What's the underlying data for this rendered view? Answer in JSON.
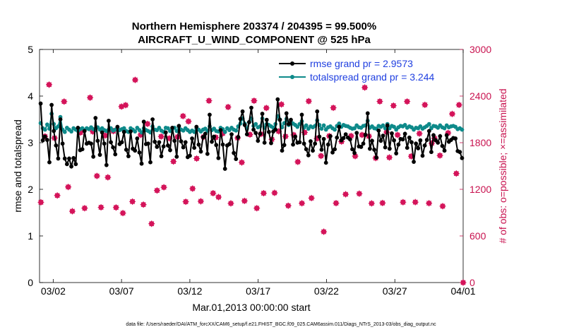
{
  "chart_data": {
    "type": "line",
    "title_line1": "Northern Hemisphere 203374 / 204395 = 99.500%",
    "title_line2": "AIRCRAFT_U_WIND_COMPONENT @ 525 hPa",
    "xlabel": "Mar.01,2013 00:00:00 start",
    "ylabel_left": "rmse and totalspread",
    "ylabel_right": "# of obs: o=possible; ×=assimilated",
    "footnote": "data file: /Users/raeder/DAI/ATM_forcXX/CAM6_setup/f.e21.FHIST_BGC.f09_025.CAM6assim.011/Diags_NTrS_2013-03/obs_diag_output.nc",
    "xlim": [
      0,
      31
    ],
    "ylim_left": [
      0,
      5
    ],
    "ylim_right": [
      0,
      3000
    ],
    "x_ticks": [
      {
        "value": 1,
        "label": "03/02"
      },
      {
        "value": 6,
        "label": "03/07"
      },
      {
        "value": 11,
        "label": "03/12"
      },
      {
        "value": 16,
        "label": "03/17"
      },
      {
        "value": 21,
        "label": "03/22"
      },
      {
        "value": 26,
        "label": "03/27"
      },
      {
        "value": 31,
        "label": "04/01"
      }
    ],
    "y_ticks_left": [
      "0",
      "1",
      "2",
      "3",
      "4",
      "5"
    ],
    "y_ticks_right": [
      "0",
      "600",
      "1200",
      "1800",
      "2400",
      "3000"
    ],
    "series": [
      {
        "name": "rmse",
        "legend": "rmse grand pr = 2.9573",
        "color": "#000000",
        "values": [
          3.84,
          3.05,
          3.13,
          3.06,
          2.58,
          3.81,
          3.25,
          2.94,
          2.66,
          3.5,
          2.98,
          2.66,
          2.54,
          2.66,
          2.49,
          2.67,
          2.54,
          3.32,
          2.84,
          2.86,
          3.25,
          2.98,
          3.0,
          2.98,
          2.7,
          3.53,
          3.04,
          2.74,
          3.22,
          2.98,
          2.52,
          3.47,
          3.01,
          2.9,
          2.75,
          3.34,
          2.97,
          3.01,
          3.23,
          2.85,
          2.71,
          3.24,
          2.87,
          2.83,
          3.09,
          2.79,
          2.55,
          3.45,
          2.97,
          2.98,
          2.58,
          3.5,
          3.02,
          2.91,
          3.01,
          2.71,
          2.92,
          3.22,
          2.94,
          2.84,
          3.32,
          3.04,
          2.7,
          3.36,
          3.03,
          2.9,
          3.01,
          2.69,
          2.72,
          3.09,
          2.89,
          3.34,
          2.96,
          2.81,
          3.12,
          3.19,
          2.76,
          3.6,
          3.02,
          3.13,
          2.95,
          2.67,
          3.27,
          2.96,
          2.44,
          2.94,
          2.97,
          3.18,
          2.78,
          2.65,
          3.12,
          3.51,
          3.67,
          3.38,
          3.18,
          3.44,
          3.75,
          3.28,
          3.21,
          3.04,
          3.19,
          3.62,
          3.0,
          3.49,
          3.23,
          2.99,
          3.24,
          3.28,
          3.93,
          3.49,
          2.83,
          2.95,
          3.63,
          3.4,
          3.49,
          2.96,
          3.13,
          3.0,
          3.01,
          3.6,
          2.98,
          2.86,
          2.73,
          3.03,
          2.83,
          2.98,
          3.67,
          3.13,
          2.85,
          3.08,
          2.57,
          2.96,
          3.14,
          2.79,
          2.86,
          3.11,
          3.34,
          3.05,
          3.1,
          3.18,
          3.11,
          3.07,
          2.86,
          2.78,
          3.21,
          2.92,
          2.91,
          2.98,
          3.17,
          3.63,
          2.87,
          3.04,
          2.85,
          2.68,
          3.26,
          3.04,
          3.15,
          2.9,
          3.37,
          2.87,
          3.2,
          3.05,
          2.77,
          2.96,
          3.08,
          3.07,
          3.19,
          2.89,
          3.11,
          3.01,
          2.59,
          2.98,
          2.88,
          3.05,
          2.72,
          2.94,
          3.06,
          3.25,
          2.8,
          3.16,
          3.05,
          3.0,
          3.14,
          2.93,
          2.83,
          3.16,
          3.02,
          3.06,
          3.1,
          3.09,
          2.82,
          2.8,
          2.67
        ]
      },
      {
        "name": "totalspread",
        "legend": "totalspread grand pr = 3.244",
        "color": "#0e8a8a",
        "values": [
          3.42,
          3.31,
          3.28,
          3.39,
          3.3,
          3.62,
          3.4,
          3.31,
          3.35,
          3.55,
          3.28,
          3.23,
          3.32,
          3.28,
          3.24,
          3.31,
          3.28,
          3.25,
          3.29,
          3.31,
          3.27,
          3.31,
          3.29,
          3.33,
          3.29,
          3.27,
          3.33,
          3.28,
          3.31,
          3.27,
          3.25,
          3.28,
          3.31,
          3.26,
          3.28,
          3.32,
          3.27,
          3.29,
          3.31,
          3.25,
          3.23,
          3.31,
          3.28,
          3.24,
          3.32,
          3.27,
          3.22,
          3.31,
          3.27,
          3.25,
          3.22,
          3.35,
          3.28,
          3.27,
          3.32,
          3.26,
          3.23,
          3.32,
          3.31,
          3.25,
          3.29,
          3.32,
          3.25,
          3.33,
          3.28,
          3.26,
          3.31,
          3.27,
          3.23,
          3.26,
          3.23,
          3.3,
          3.28,
          3.24,
          3.28,
          3.3,
          3.25,
          3.35,
          3.27,
          3.3,
          3.25,
          3.24,
          3.32,
          3.29,
          3.23,
          3.31,
          3.27,
          3.32,
          3.28,
          3.26,
          3.35,
          3.41,
          3.52,
          3.41,
          3.3,
          3.44,
          3.52,
          3.36,
          3.4,
          3.33,
          3.35,
          3.52,
          3.32,
          3.4,
          3.38,
          3.35,
          3.32,
          3.4,
          3.57,
          3.5,
          3.33,
          3.42,
          3.51,
          3.38,
          3.45,
          3.41,
          3.38,
          3.34,
          3.4,
          3.46,
          3.32,
          3.37,
          3.3,
          3.35,
          3.33,
          3.36,
          3.48,
          3.38,
          3.3,
          3.37,
          3.28,
          3.33,
          3.35,
          3.31,
          3.28,
          3.36,
          3.41,
          3.34,
          3.38,
          3.36,
          3.35,
          3.32,
          3.3,
          3.31,
          3.37,
          3.33,
          3.32,
          3.36,
          3.37,
          3.47,
          3.32,
          3.35,
          3.31,
          3.3,
          3.36,
          3.34,
          3.37,
          3.31,
          3.4,
          3.31,
          3.36,
          3.34,
          3.28,
          3.33,
          3.36,
          3.35,
          3.38,
          3.32,
          3.35,
          3.33,
          3.28,
          3.32,
          3.31,
          3.35,
          3.3,
          3.33,
          3.36,
          3.4,
          3.31,
          3.36,
          3.35,
          3.32,
          3.37,
          3.33,
          3.31,
          3.37,
          3.33,
          3.35,
          3.36,
          3.34,
          3.29,
          3.31,
          3.28
        ]
      }
    ],
    "obs_possible": [
      [
        0.1,
        1033
      ],
      [
        0.4,
        1881
      ],
      [
        0.7,
        2547
      ],
      [
        1.1,
        1860
      ],
      [
        1.3,
        1120
      ],
      [
        1.8,
        2329
      ],
      [
        2.1,
        1230
      ],
      [
        2.4,
        918
      ],
      [
        3.0,
        1931
      ],
      [
        3.3,
        957
      ],
      [
        3.7,
        2380
      ],
      [
        3.9,
        1943
      ],
      [
        4.2,
        1372
      ],
      [
        4.5,
        968
      ],
      [
        4.8,
        1892
      ],
      [
        5.0,
        1354
      ],
      [
        5.4,
        1949
      ],
      [
        5.6,
        966
      ],
      [
        6.0,
        2265
      ],
      [
        6.1,
        894
      ],
      [
        6.3,
        2283
      ],
      [
        6.8,
        1042
      ],
      [
        7.0,
        2608
      ],
      [
        7.4,
        1900
      ],
      [
        7.6,
        1003
      ],
      [
        7.9,
        2042
      ],
      [
        8.2,
        757
      ],
      [
        8.6,
        1185
      ],
      [
        8.9,
        1879
      ],
      [
        9.1,
        1226
      ],
      [
        9.5,
        1856
      ],
      [
        9.8,
        1558
      ],
      [
        10.1,
        1874
      ],
      [
        10.5,
        2142
      ],
      [
        10.7,
        1040
      ],
      [
        10.9,
        2074
      ],
      [
        11.2,
        1209
      ],
      [
        11.5,
        1596
      ],
      [
        11.8,
        1046
      ],
      [
        12.0,
        1874
      ],
      [
        12.4,
        2340
      ],
      [
        12.7,
        1150
      ],
      [
        12.9,
        1868
      ],
      [
        13.1,
        1100
      ],
      [
        13.4,
        1918
      ],
      [
        13.8,
        2259
      ],
      [
        14.0,
        1019
      ],
      [
        14.5,
        1861
      ],
      [
        14.8,
        1546
      ],
      [
        15.0,
        1051
      ],
      [
        15.4,
        1904
      ],
      [
        15.7,
        2340
      ],
      [
        15.9,
        957
      ],
      [
        16.2,
        1911
      ],
      [
        16.4,
        1150
      ],
      [
        16.6,
        2247
      ],
      [
        17.0,
        1843
      ],
      [
        17.2,
        1154
      ],
      [
        17.5,
        1947
      ],
      [
        17.7,
        2293
      ],
      [
        18.0,
        1881
      ],
      [
        18.2,
        989
      ],
      [
        18.6,
        1900
      ],
      [
        18.9,
        1553
      ],
      [
        19.2,
        1020
      ],
      [
        19.4,
        1932
      ],
      [
        19.7,
        2334
      ],
      [
        19.9,
        1087
      ],
      [
        20.3,
        1853
      ],
      [
        20.6,
        1630
      ],
      [
        20.8,
        654
      ],
      [
        21.2,
        1886
      ],
      [
        21.5,
        2249
      ],
      [
        21.7,
        1022
      ],
      [
        22.1,
        1815
      ],
      [
        22.4,
        1136
      ],
      [
        22.8,
        1887
      ],
      [
        23.1,
        1627
      ],
      [
        23.4,
        1144
      ],
      [
        23.6,
        1900
      ],
      [
        23.8,
        2510
      ],
      [
        24.1,
        1883
      ],
      [
        24.3,
        1019
      ],
      [
        24.6,
        1602
      ],
      [
        24.9,
        2331
      ],
      [
        25.1,
        1024
      ],
      [
        25.4,
        1936
      ],
      [
        25.6,
        1610
      ],
      [
        25.9,
        2277
      ],
      [
        26.2,
        1900
      ],
      [
        26.6,
        1034
      ],
      [
        26.9,
        2330
      ],
      [
        27.2,
        1625
      ],
      [
        27.5,
        1035
      ],
      [
        27.8,
        1917
      ],
      [
        28.2,
        2287
      ],
      [
        28.5,
        1021
      ],
      [
        28.7,
        1792
      ],
      [
        28.9,
        1857
      ],
      [
        29.3,
        1635
      ],
      [
        29.5,
        983
      ],
      [
        29.9,
        1925
      ],
      [
        30.2,
        2170
      ],
      [
        30.5,
        1403
      ],
      [
        30.7,
        2286
      ],
      [
        31.0,
        0
      ]
    ]
  }
}
